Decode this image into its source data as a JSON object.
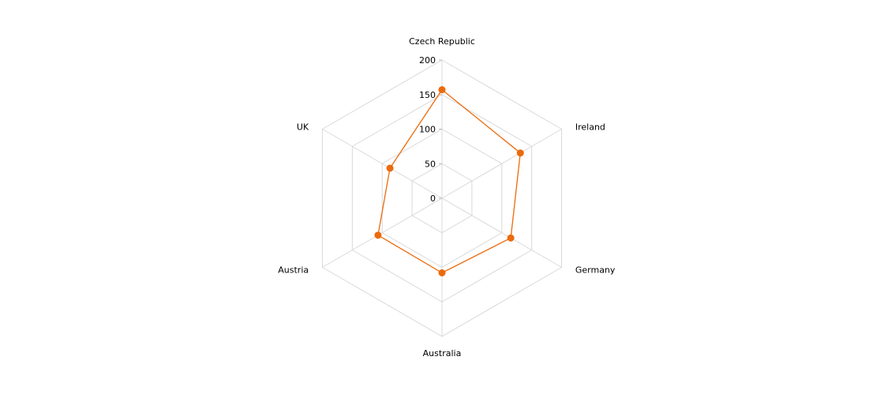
{
  "chart_data": {
    "type": "radar",
    "categories": [
      "Czech Republic",
      "Ireland",
      "Germany",
      "Australia",
      "Austria",
      "UK"
    ],
    "series": [
      {
        "values": [
          157,
          131,
          115,
          108,
          107,
          87
        ]
      }
    ],
    "ylim": [
      0,
      200
    ],
    "ticks": [
      0,
      50,
      100,
      150,
      200
    ],
    "tick_labels": [
      "0",
      "50",
      "100",
      "150",
      "200"
    ],
    "grid": true,
    "legend": "none"
  },
  "colors": {
    "series": "#ec6a0c",
    "grid": "#d9d9d9",
    "text": "#000000"
  }
}
